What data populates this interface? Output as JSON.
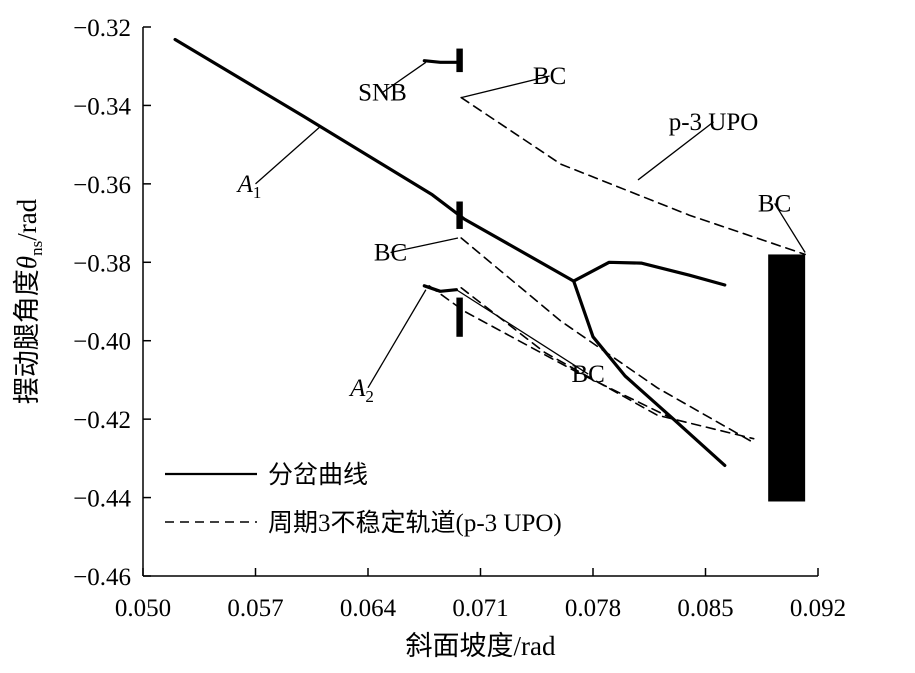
{
  "chart_data": {
    "type": "line",
    "title": "",
    "xlabel": "斜面坡度/rad",
    "ylabel": {
      "main": "摆动腿角度",
      "symbol": "θ",
      "subscript": "ns",
      "unit": "/rad"
    },
    "xlim": [
      0.05,
      0.092
    ],
    "ylim": [
      -0.46,
      -0.32
    ],
    "xticks": [
      0.05,
      0.057,
      0.064,
      0.071,
      0.078,
      0.085,
      0.092
    ],
    "xtick_labels": [
      "0.050",
      "0.057",
      "0.064",
      "0.071",
      "0.078",
      "0.085",
      "0.092"
    ],
    "yticks": [
      -0.32,
      -0.34,
      -0.36,
      -0.38,
      -0.4,
      -0.42,
      -0.44,
      -0.46
    ],
    "ytick_labels": [
      "−0.32",
      "−0.34",
      "−0.36",
      "−0.38",
      "−0.40",
      "−0.42",
      "−0.44",
      "−0.46"
    ],
    "grid": false,
    "legend": {
      "placement": "bottom-left",
      "entries": [
        {
          "label": "分岔曲线",
          "style": "solid"
        },
        {
          "label": "周期3不稳定轨道(p-3 UPO)",
          "style": "dashed"
        }
      ]
    },
    "series": [
      {
        "name": "分岔曲线",
        "style": "solid",
        "segments": [
          [
            [
              0.052,
              -0.3232
            ],
            [
              0.06,
              -0.3428
            ],
            [
              0.068,
              -0.3628
            ],
            [
              0.07,
              -0.369
            ],
            [
              0.0768,
              -0.3848
            ]
          ],
          [
            [
              0.0768,
              -0.3848
            ],
            [
              0.079,
              -0.38
            ],
            [
              0.081,
              -0.3802
            ],
            [
              0.084,
              -0.3833
            ],
            [
              0.0862,
              -0.3858
            ]
          ],
          [
            [
              0.0768,
              -0.3848
            ],
            [
              0.078,
              -0.399
            ],
            [
              0.08,
              -0.409
            ],
            [
              0.083,
              -0.42
            ],
            [
              0.0862,
              -0.4318
            ]
          ],
          [
            [
              0.0675,
              -0.3286
            ],
            [
              0.0685,
              -0.329
            ],
            [
              0.0695,
              -0.329
            ]
          ],
          [
            [
              0.0675,
              -0.386
            ],
            [
              0.0685,
              -0.3874
            ],
            [
              0.0695,
              -0.387
            ]
          ]
        ]
      },
      {
        "name": "周期3不稳定轨道(p-3 UPO)",
        "style": "dashed",
        "segments": [
          [
            [
              0.0698,
              -0.338
            ],
            [
              0.076,
              -0.355
            ],
            [
              0.084,
              -0.368
            ],
            [
              0.0912,
              -0.378
            ]
          ],
          [
            [
              0.0698,
              -0.3738
            ],
            [
              0.076,
              -0.395
            ],
            [
              0.082,
              -0.412
            ],
            [
              0.088,
              -0.426
            ]
          ],
          [
            [
              0.0698,
              -0.3865
            ],
            [
              0.075,
              -0.403
            ],
            [
              0.082,
              -0.419
            ],
            [
              0.088,
              -0.425
            ]
          ],
          [
            [
              0.0678,
              -0.386
            ],
            [
              0.07,
              -0.3925
            ],
            [
              0.077,
              -0.408
            ],
            [
              0.083,
              -0.42
            ]
          ]
        ]
      }
    ],
    "chaotic_bands": [
      {
        "x": [
          0.0695,
          0.0699
        ],
        "y_low": -0.3315,
        "y_high": -0.3255
      },
      {
        "x": [
          0.0695,
          0.0699
        ],
        "y_low": -0.3715,
        "y_high": -0.3645
      },
      {
        "x": [
          0.0695,
          0.0699
        ],
        "y_low": -0.399,
        "y_high": -0.389
      },
      {
        "x": [
          0.0889,
          0.0912
        ],
        "y_low": -0.441,
        "y_high": -0.378
      }
    ],
    "annotations": [
      {
        "text": "SNB",
        "x": 0.0649,
        "y": -0.3367,
        "point": [
          0.0676,
          -0.329
        ]
      },
      {
        "text": "BC",
        "x": 0.0753,
        "y": -0.3325,
        "point": [
          0.0698,
          -0.338
        ]
      },
      {
        "text": "p-3 UPO",
        "x": 0.0855,
        "y": -0.3442,
        "point": [
          0.0808,
          -0.359
        ]
      },
      {
        "text": "BC",
        "x": 0.0893,
        "y": -0.365,
        "point": [
          0.0912,
          -0.3775
        ]
      },
      {
        "text": "BC",
        "x": 0.0654,
        "y": -0.3775,
        "point": [
          0.0696,
          -0.3738
        ]
      },
      {
        "text": "BC",
        "x": 0.0777,
        "y": -0.4085,
        "point": [
          0.0695,
          -0.387
        ]
      },
      {
        "text": "A",
        "sub": "1",
        "x": 0.057,
        "y": -0.36,
        "point": [
          0.061,
          -0.3455
        ]
      },
      {
        "text": "A",
        "sub": "2",
        "x": 0.064,
        "y": -0.412,
        "point": [
          0.0676,
          -0.387
        ]
      }
    ]
  }
}
